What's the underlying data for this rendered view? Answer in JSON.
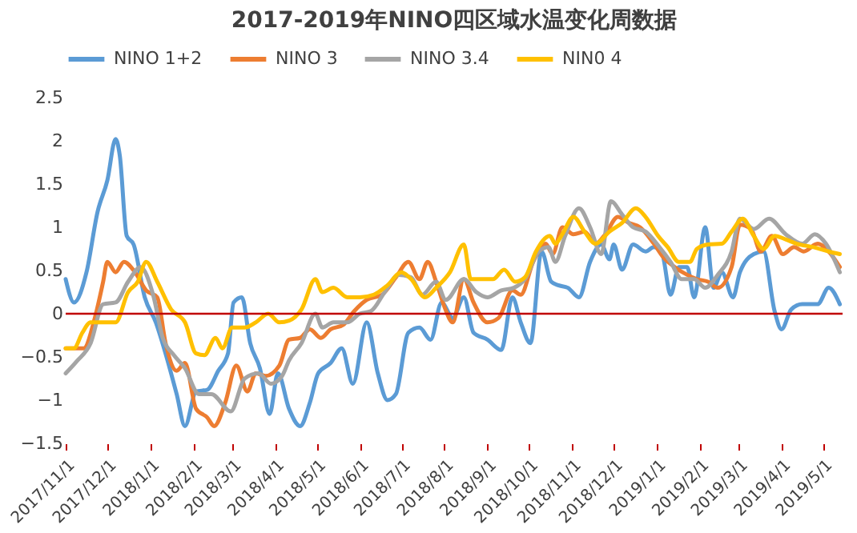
{
  "chart_data": {
    "type": "line",
    "title": "2017-2019年NINO四区域水温变化周数据",
    "xlim": [
      "2017-11-01",
      "2019-05-15"
    ],
    "xticks": [
      {
        "value": "2017-11-01",
        "label": "2017/11/1"
      },
      {
        "value": "2017-12-01",
        "label": "2017/12/1"
      },
      {
        "value": "2018-01-01",
        "label": "2018/1/1"
      },
      {
        "value": "2018-02-01",
        "label": "2018/2/1"
      },
      {
        "value": "2018-03-01",
        "label": "2018/3/1"
      },
      {
        "value": "2018-04-01",
        "label": "2018/4/1"
      },
      {
        "value": "2018-05-01",
        "label": "2018/5/1"
      },
      {
        "value": "2018-06-01",
        "label": "2018/6/1"
      },
      {
        "value": "2018-07-01",
        "label": "2018/7/1"
      },
      {
        "value": "2018-08-01",
        "label": "2018/8/1"
      },
      {
        "value": "2018-09-01",
        "label": "2018/9/1"
      },
      {
        "value": "2018-10-01",
        "label": "2018/10/1"
      },
      {
        "value": "2018-11-01",
        "label": "2018/11/1"
      },
      {
        "value": "2018-12-01",
        "label": "2018/12/1"
      },
      {
        "value": "2019-01-01",
        "label": "2019/1/1"
      },
      {
        "value": "2019-02-01",
        "label": "2019/2/1"
      },
      {
        "value": "2019-03-01",
        "label": "2019/3/1"
      },
      {
        "value": "2019-04-01",
        "label": "2019/4/1"
      },
      {
        "value": "2019-05-01",
        "label": "2019/5/1"
      }
    ],
    "ylim": [
      -1.5,
      2.5
    ],
    "yticks": [
      -1.5,
      -1,
      -0.5,
      0,
      0.5,
      1,
      1.5,
      2,
      2.5
    ],
    "grid": false,
    "legend": "top",
    "marker": "none",
    "line_style": "solid",
    "ref_lines": [
      {
        "axis": "y",
        "value": 0,
        "color": "#c00000"
      }
    ],
    "series": [
      {
        "name": "NINO 1+2",
        "color": "#5b9bd5",
        "x": [
          "2017-11-01",
          "2017-11-07",
          "2017-11-16",
          "2017-11-24",
          "2017-12-01",
          "2017-12-07",
          "2017-12-10",
          "2017-12-15",
          "2017-12-20",
          "2017-12-28",
          "2018-01-05",
          "2018-01-12",
          "2018-01-20",
          "2018-01-26",
          "2018-02-03",
          "2018-02-11",
          "2018-02-19",
          "2018-02-26",
          "2018-03-02",
          "2018-03-08",
          "2018-03-14",
          "2018-03-21",
          "2018-03-28",
          "2018-04-03",
          "2018-04-11",
          "2018-04-19",
          "2018-04-26",
          "2018-05-02",
          "2018-05-11",
          "2018-05-19",
          "2018-05-27",
          "2018-06-06",
          "2018-06-14",
          "2018-06-21",
          "2018-06-27",
          "2018-07-06",
          "2018-07-14",
          "2018-07-22",
          "2018-07-30",
          "2018-08-07",
          "2018-08-15",
          "2018-08-22",
          "2018-09-01",
          "2018-09-11",
          "2018-09-19",
          "2018-09-25",
          "2018-10-02",
          "2018-10-10",
          "2018-10-17",
          "2018-10-22",
          "2018-10-29",
          "2018-11-06",
          "2018-11-14",
          "2018-11-22",
          "2018-11-28",
          "2018-12-01",
          "2018-12-07",
          "2018-12-15",
          "2018-12-24",
          "2018-12-30",
          "2019-01-05",
          "2019-01-11",
          "2019-01-17",
          "2019-01-23",
          "2019-01-28",
          "2019-02-05",
          "2019-02-11",
          "2019-02-17",
          "2019-02-25",
          "2019-03-02",
          "2019-03-12",
          "2019-03-19",
          "2019-03-27",
          "2019-04-01",
          "2019-04-08",
          "2019-04-16",
          "2019-04-27",
          "2019-05-05",
          "2019-05-13"
        ],
        "values": [
          0.4,
          0.13,
          0.48,
          1.18,
          1.54,
          2.02,
          1.83,
          0.9,
          0.8,
          0.19,
          -0.1,
          -0.46,
          -0.93,
          -1.3,
          -0.9,
          -0.88,
          -0.66,
          -0.46,
          0.13,
          0.19,
          -0.34,
          -0.63,
          -1.16,
          -0.69,
          -1.1,
          -1.3,
          -1.03,
          -0.69,
          -0.57,
          -0.4,
          -0.81,
          -0.1,
          -0.69,
          -1.0,
          -0.93,
          -0.22,
          -0.16,
          -0.3,
          0.13,
          -0.05,
          0.19,
          -0.22,
          -0.3,
          -0.42,
          0.19,
          -0.1,
          -0.34,
          0.72,
          0.37,
          0.33,
          0.3,
          0.19,
          0.6,
          0.8,
          0.63,
          0.8,
          0.51,
          0.8,
          0.72,
          0.77,
          0.69,
          0.22,
          0.54,
          0.54,
          0.19,
          1.0,
          0.3,
          0.48,
          0.19,
          0.48,
          0.69,
          0.72,
          0.03,
          -0.18,
          0.05,
          0.11,
          0.11,
          0.3,
          0.11
        ]
      },
      {
        "name": "NINO 3",
        "color": "#ed7d31",
        "x": [
          "2017-11-01",
          "2017-11-14",
          "2017-11-22",
          "2017-11-28",
          "2017-12-01",
          "2017-12-07",
          "2017-12-13",
          "2017-12-21",
          "2017-12-29",
          "2018-01-06",
          "2018-01-12",
          "2018-01-20",
          "2018-01-26",
          "2018-02-03",
          "2018-02-11",
          "2018-02-16",
          "2018-02-24",
          "2018-03-04",
          "2018-03-12",
          "2018-03-18",
          "2018-03-25",
          "2018-04-04",
          "2018-04-11",
          "2018-04-19",
          "2018-04-26",
          "2018-05-04",
          "2018-05-11",
          "2018-05-20",
          "2018-05-28",
          "2018-06-06",
          "2018-06-17",
          "2018-06-27",
          "2018-07-06",
          "2018-07-14",
          "2018-07-20",
          "2018-07-26",
          "2018-08-01",
          "2018-08-07",
          "2018-08-15",
          "2018-08-22",
          "2018-09-01",
          "2018-09-09",
          "2018-09-19",
          "2018-09-25",
          "2018-10-04",
          "2018-10-13",
          "2018-10-18",
          "2018-10-25",
          "2018-11-02",
          "2018-11-10",
          "2018-11-18",
          "2018-11-25",
          "2018-12-04",
          "2018-12-12",
          "2018-12-20",
          "2018-12-30",
          "2019-01-06",
          "2019-01-14",
          "2019-01-23",
          "2019-01-30",
          "2019-02-07",
          "2019-02-14",
          "2019-02-24",
          "2019-03-02",
          "2019-03-10",
          "2019-03-17",
          "2019-03-25",
          "2019-04-02",
          "2019-04-10",
          "2019-04-17",
          "2019-04-27",
          "2019-05-05",
          "2019-05-13"
        ],
        "values": [
          -0.4,
          -0.4,
          -0.05,
          0.37,
          0.6,
          0.48,
          0.6,
          0.48,
          0.27,
          0.19,
          -0.34,
          -0.66,
          -0.57,
          -1.1,
          -1.2,
          -1.3,
          -1.03,
          -0.6,
          -0.9,
          -0.69,
          -0.72,
          -0.6,
          -0.3,
          -0.28,
          -0.18,
          -0.28,
          -0.18,
          -0.13,
          0.03,
          0.16,
          0.22,
          0.42,
          0.6,
          0.4,
          0.6,
          0.37,
          0.08,
          -0.1,
          0.4,
          0.13,
          -0.1,
          -0.05,
          0.27,
          0.22,
          0.6,
          0.81,
          0.69,
          1.0,
          0.92,
          0.95,
          0.81,
          0.92,
          1.12,
          1.05,
          1.0,
          0.81,
          0.65,
          0.54,
          0.45,
          0.4,
          0.37,
          0.3,
          0.54,
          1.03,
          0.98,
          0.72,
          0.9,
          0.69,
          0.77,
          0.72,
          0.81,
          0.72,
          0.54
        ]
      },
      {
        "name": "NINO 3.4",
        "color": "#a5a5a5",
        "x": [
          "2017-11-01",
          "2017-11-09",
          "2017-11-19",
          "2017-11-28",
          "2017-12-07",
          "2017-12-16",
          "2017-12-25",
          "2018-01-03",
          "2018-01-10",
          "2018-01-18",
          "2018-01-26",
          "2018-02-05",
          "2018-02-14",
          "2018-02-28",
          "2018-03-10",
          "2018-03-20",
          "2018-03-29",
          "2018-04-06",
          "2018-04-11",
          "2018-04-20",
          "2018-04-30",
          "2018-05-05",
          "2018-05-13",
          "2018-05-23",
          "2018-06-01",
          "2018-06-09",
          "2018-06-19",
          "2018-06-29",
          "2018-07-08",
          "2018-07-16",
          "2018-07-26",
          "2018-08-02",
          "2018-08-15",
          "2018-08-24",
          "2018-09-01",
          "2018-09-11",
          "2018-09-20",
          "2018-09-28",
          "2018-10-08",
          "2018-10-15",
          "2018-10-20",
          "2018-10-27",
          "2018-11-06",
          "2018-11-14",
          "2018-11-22",
          "2018-11-29",
          "2018-12-07",
          "2018-12-15",
          "2018-12-24",
          "2019-01-03",
          "2019-01-11",
          "2019-01-19",
          "2019-01-28",
          "2019-02-05",
          "2019-02-14",
          "2019-02-24",
          "2019-03-02",
          "2019-03-12",
          "2019-03-23",
          "2019-04-04",
          "2019-04-16",
          "2019-04-25",
          "2019-05-03",
          "2019-05-13"
        ],
        "values": [
          -0.69,
          -0.55,
          -0.34,
          0.11,
          0.13,
          0.37,
          0.54,
          0.22,
          -0.28,
          -0.48,
          -0.63,
          -0.93,
          -0.93,
          -1.13,
          -0.75,
          -0.69,
          -0.81,
          -0.72,
          -0.54,
          -0.34,
          0.0,
          -0.16,
          -0.1,
          -0.1,
          0.0,
          0.03,
          0.25,
          0.45,
          0.42,
          0.22,
          0.37,
          0.16,
          0.4,
          0.25,
          0.19,
          0.27,
          0.3,
          0.4,
          0.72,
          0.77,
          0.6,
          0.9,
          1.22,
          1.0,
          0.69,
          1.3,
          1.15,
          1.0,
          0.95,
          0.77,
          0.6,
          0.4,
          0.4,
          0.3,
          0.45,
          0.72,
          1.1,
          0.98,
          1.1,
          0.92,
          0.81,
          0.92,
          0.81,
          0.48
        ]
      },
      {
        "name": "NIN0 4",
        "color": "#ffc000",
        "x": [
          "2017-11-01",
          "2017-11-07",
          "2017-11-13",
          "2017-11-19",
          "2017-12-01",
          "2017-12-07",
          "2017-12-16",
          "2017-12-23",
          "2017-12-29",
          "2018-01-06",
          "2018-01-16",
          "2018-01-26",
          "2018-02-03",
          "2018-02-09",
          "2018-02-17",
          "2018-02-22",
          "2018-03-01",
          "2018-03-10",
          "2018-03-18",
          "2018-03-27",
          "2018-04-04",
          "2018-04-11",
          "2018-04-20",
          "2018-04-30",
          "2018-05-05",
          "2018-05-13",
          "2018-05-23",
          "2018-06-01",
          "2018-06-11",
          "2018-06-21",
          "2018-07-01",
          "2018-07-08",
          "2018-07-18",
          "2018-07-26",
          "2018-08-05",
          "2018-08-15",
          "2018-08-20",
          "2018-08-28",
          "2018-09-05",
          "2018-09-13",
          "2018-09-21",
          "2018-09-28",
          "2018-10-06",
          "2018-10-16",
          "2018-10-20",
          "2018-10-25",
          "2018-11-02",
          "2018-11-10",
          "2018-11-18",
          "2018-11-28",
          "2018-12-07",
          "2018-12-17",
          "2018-12-24",
          "2019-01-02",
          "2019-01-09",
          "2019-01-17",
          "2019-01-25",
          "2019-01-30",
          "2019-02-07",
          "2019-02-17",
          "2019-02-24",
          "2019-03-04",
          "2019-03-12",
          "2019-03-19",
          "2019-03-27",
          "2019-04-04",
          "2019-04-12",
          "2019-04-24",
          "2019-05-05",
          "2019-05-13"
        ],
        "values": [
          -0.4,
          -0.4,
          -0.22,
          -0.1,
          -0.1,
          -0.1,
          0.25,
          0.37,
          0.6,
          0.37,
          0.05,
          -0.1,
          -0.46,
          -0.48,
          -0.28,
          -0.4,
          -0.16,
          -0.16,
          -0.1,
          0.0,
          -0.1,
          -0.08,
          0.05,
          0.4,
          0.25,
          0.3,
          0.19,
          0.19,
          0.22,
          0.33,
          0.48,
          0.4,
          0.19,
          0.3,
          0.48,
          0.8,
          0.4,
          0.4,
          0.4,
          0.51,
          0.37,
          0.42,
          0.72,
          0.9,
          0.81,
          0.92,
          1.12,
          0.95,
          0.81,
          0.95,
          1.05,
          1.22,
          1.12,
          0.9,
          0.77,
          0.6,
          0.6,
          0.75,
          0.8,
          0.81,
          0.95,
          1.1,
          0.9,
          0.75,
          0.9,
          0.86,
          0.81,
          0.77,
          0.72,
          0.69
        ]
      }
    ]
  }
}
